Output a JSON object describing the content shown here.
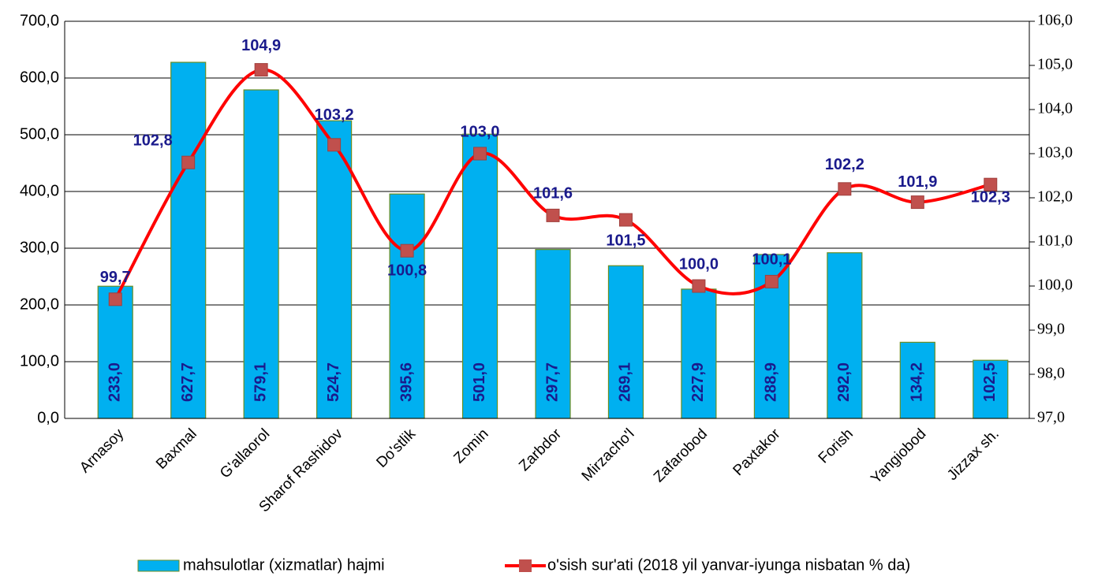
{
  "chart_data": {
    "type": "bar-line",
    "categories": [
      "Arnasoy",
      "Baxmal",
      "G'allaorol",
      "Sharof Rashidov",
      "Do'stlik",
      "Zomin",
      "Zarbdor",
      "Mirzacho'l",
      "Zafarobod",
      "Paxtakor",
      "Forish",
      "Yangiobod",
      "Jizzax sh."
    ],
    "series": [
      {
        "name": "mahsulotlar (xizmatlar) hajmi",
        "type": "bar",
        "color": "#00b0f0",
        "values": [
          233.0,
          627.7,
          579.1,
          524.7,
          395.6,
          501.0,
          297.7,
          269.1,
          227.9,
          288.9,
          292.0,
          134.2,
          102.5
        ],
        "value_labels": [
          "233,0",
          "627,7",
          "579,1",
          "524,7",
          "395,6",
          "501,0",
          "297,7",
          "269,1",
          "227,9",
          "288,9",
          "292,0",
          "134,2",
          "102,5"
        ]
      },
      {
        "name": "o'sish sur'ati (2018 yil yanvar-iyunga nisbatan % da)",
        "type": "line",
        "axis": "y2",
        "color": "#ff0000",
        "marker_color": "#c0504d",
        "values": [
          99.7,
          102.8,
          104.9,
          103.2,
          100.8,
          103.0,
          101.6,
          101.5,
          100.0,
          100.1,
          102.2,
          101.9,
          102.3
        ],
        "value_labels": [
          "99,7",
          "102,8",
          "104,9",
          "103,2",
          "100,8",
          "103,0",
          "101,6",
          "101,5",
          "100,0",
          "100,1",
          "102,2",
          "101,9",
          "102,3"
        ]
      }
    ],
    "ylim": [
      0,
      700
    ],
    "yticks": [
      {
        "value": 0,
        "label": "0,0"
      },
      {
        "value": 100,
        "label": "100,0"
      },
      {
        "value": 200,
        "label": "200,0"
      },
      {
        "value": 300,
        "label": "300,0"
      },
      {
        "value": 400,
        "label": "400,0"
      },
      {
        "value": 500,
        "label": "500,0"
      },
      {
        "value": 600,
        "label": "600,0"
      },
      {
        "value": 700,
        "label": "700,0"
      }
    ],
    "y2lim": [
      97,
      106
    ],
    "y2ticks": [
      {
        "value": 97,
        "label": "97,0"
      },
      {
        "value": 98,
        "label": "98,0"
      },
      {
        "value": 99,
        "label": "99,0"
      },
      {
        "value": 100,
        "label": "100,0"
      },
      {
        "value": 101,
        "label": "101,0"
      },
      {
        "value": 102,
        "label": "102,0"
      },
      {
        "value": 103,
        "label": "103,0"
      },
      {
        "value": 104,
        "label": "104,0"
      },
      {
        "value": 105,
        "label": "105,0"
      },
      {
        "value": 106,
        "label": "106,0"
      }
    ],
    "grid": true,
    "legend": "bottom"
  }
}
